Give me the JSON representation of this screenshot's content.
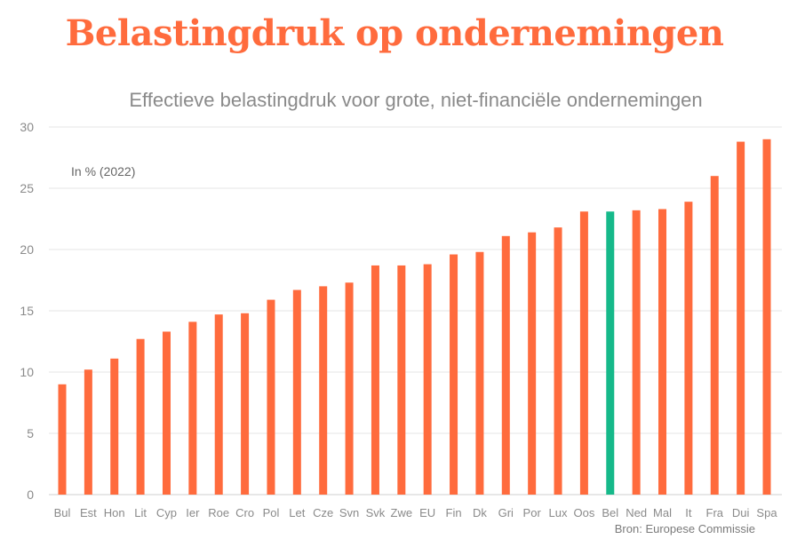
{
  "title": "Belastingdruk op ondernemingen",
  "subtitle": "Effectieve belastingdruk voor grote, niet-financiële ondernemingen",
  "source": "Bron: Europese Commissie",
  "colors": {
    "title": "#ff6b3d",
    "bar": "#ff6b3d",
    "highlight": "#16b98a"
  },
  "chart_data": {
    "type": "bar",
    "unit_label": "In % (2022)",
    "categories": [
      "Bul",
      "Est",
      "Hon",
      "Lit",
      "Cyp",
      "Ier",
      "Roe",
      "Cro",
      "Pol",
      "Let",
      "Cze",
      "Svn",
      "Svk",
      "Zwe",
      "EU",
      "Fin",
      "Dk",
      "Gri",
      "Por",
      "Lux",
      "Oos",
      "Bel",
      "Ned",
      "Mal",
      "It",
      "Fra",
      "Dui",
      "Spa"
    ],
    "values": [
      9.0,
      10.2,
      11.1,
      12.7,
      13.3,
      14.1,
      14.7,
      14.8,
      15.9,
      16.7,
      17.0,
      17.3,
      18.7,
      18.7,
      18.8,
      19.6,
      19.8,
      21.1,
      21.4,
      21.8,
      23.1,
      23.1,
      23.2,
      23.3,
      23.9,
      26.0,
      28.8,
      29.0
    ],
    "highlight_category": "Bel",
    "ylim": [
      0,
      30
    ],
    "yticks": [
      0,
      5,
      10,
      15,
      20,
      25,
      30
    ],
    "grid": true
  }
}
